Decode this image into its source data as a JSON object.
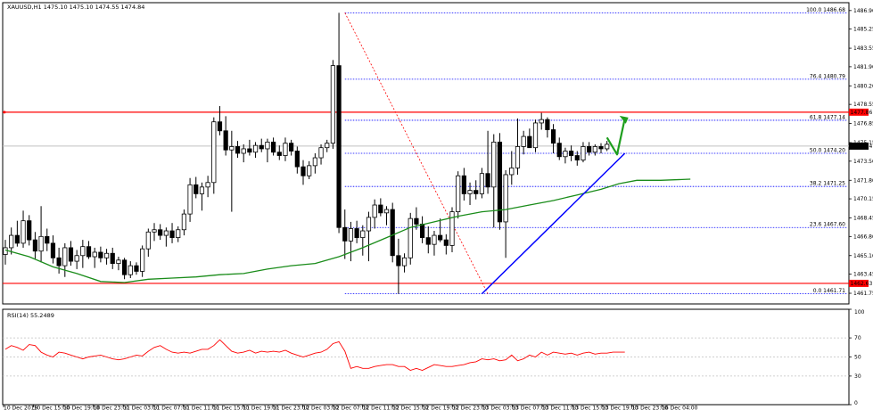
{
  "chart_data": {
    "type": "candlestick",
    "title": "XAUUSD,H1  1475.10 1475.10 1474.55 1474.84",
    "colors": {
      "frame": "#000000",
      "candle": "#000000",
      "ma": "#1a8c1a",
      "rsi": "#ff0000",
      "resistance": "#ff0000",
      "trendline": "#0000ff",
      "fib": "#0000ff",
      "fib_diag": "#ff0000",
      "arrow": "#1e9e1e",
      "price_tag": "#000000",
      "level_tag": "#ff0000"
    },
    "price_axis": {
      "ylim": [
        1460.8,
        1487.6
      ],
      "ticks": [
        "1486.90",
        "1485.25",
        "1483.55",
        "1481.90",
        "1480.20",
        "1478.55",
        "1476.85",
        "1475.15",
        "1473.50",
        "1471.80",
        "1470.15",
        "1468.45",
        "1466.80",
        "1465.10",
        "1463.45",
        "1461.75"
      ]
    },
    "time_axis": {
      "labels": [
        "10 Dec 2019",
        "10 Dec 15:00",
        "10 Dec 19:00",
        "10 Dec 23:00",
        "11 Dec 03:00",
        "11 Dec 07:00",
        "11 Dec 11:00",
        "11 Dec 15:00",
        "11 Dec 19:00",
        "11 Dec 23:00",
        "12 Dec 03:00",
        "12 Dec 07:00",
        "12 Dec 11:00",
        "12 Dec 15:00",
        "12 Dec 19:00",
        "12 Dec 23:00",
        "13 Dec 03:00",
        "13 Dec 07:00",
        "13 Dec 11:00",
        "13 Dec 15:00",
        "13 Dec 19:00",
        "13 Dec 23:00",
        "16 Dec 04:00"
      ]
    },
    "current_price": "1474.84",
    "levels": [
      {
        "name": "resistance",
        "value": 1477.86,
        "label": "1477.86"
      },
      {
        "name": "support",
        "value": 1462.63,
        "label": "1462.63"
      }
    ],
    "fibonacci": [
      {
        "label": "100.0 1486.68",
        "value": 1486.68
      },
      {
        "label": "76.4 1480.79",
        "value": 1480.79
      },
      {
        "label": "61.8 1477.14",
        "value": 1477.14
      },
      {
        "label": "50.0 1474.20",
        "value": 1474.2
      },
      {
        "label": "38.2 1471.25",
        "value": 1471.25
      },
      {
        "label": "23.6 1467.60",
        "value": 1467.6
      },
      {
        "label": "0.0 1461.71",
        "value": 1461.71
      }
    ],
    "candles": [
      {
        "o": 1465.2,
        "h": 1466.5,
        "l": 1464.3,
        "c": 1465.8
      },
      {
        "o": 1465.8,
        "h": 1467.6,
        "l": 1465.2,
        "c": 1466.9
      },
      {
        "o": 1466.9,
        "h": 1468.2,
        "l": 1465.9,
        "c": 1466.2
      },
      {
        "o": 1466.2,
        "h": 1469.1,
        "l": 1465.8,
        "c": 1468.2
      },
      {
        "o": 1468.2,
        "h": 1468.7,
        "l": 1466.0,
        "c": 1466.5
      },
      {
        "o": 1466.5,
        "h": 1467.2,
        "l": 1464.8,
        "c": 1465.5
      },
      {
        "o": 1465.5,
        "h": 1469.5,
        "l": 1464.5,
        "c": 1466.8
      },
      {
        "o": 1466.8,
        "h": 1467.5,
        "l": 1465.5,
        "c": 1466.2
      },
      {
        "o": 1466.2,
        "h": 1466.9,
        "l": 1464.4,
        "c": 1464.9
      },
      {
        "o": 1464.9,
        "h": 1465.8,
        "l": 1463.5,
        "c": 1464.2
      },
      {
        "o": 1464.2,
        "h": 1466.2,
        "l": 1463.2,
        "c": 1465.8
      },
      {
        "o": 1465.8,
        "h": 1466.4,
        "l": 1464.2,
        "c": 1464.6
      },
      {
        "o": 1464.6,
        "h": 1465.6,
        "l": 1463.9,
        "c": 1465.1
      },
      {
        "o": 1465.1,
        "h": 1466.5,
        "l": 1464.0,
        "c": 1465.9
      },
      {
        "o": 1465.9,
        "h": 1466.4,
        "l": 1464.8,
        "c": 1465.0
      },
      {
        "o": 1465.0,
        "h": 1465.8,
        "l": 1464.0,
        "c": 1465.4
      },
      {
        "o": 1465.4,
        "h": 1465.9,
        "l": 1464.5,
        "c": 1464.9
      },
      {
        "o": 1464.9,
        "h": 1465.7,
        "l": 1464.3,
        "c": 1465.3
      },
      {
        "o": 1465.3,
        "h": 1465.8,
        "l": 1463.9,
        "c": 1464.4
      },
      {
        "o": 1464.4,
        "h": 1465.0,
        "l": 1463.8,
        "c": 1464.7
      },
      {
        "o": 1464.7,
        "h": 1464.9,
        "l": 1463.0,
        "c": 1463.4
      },
      {
        "o": 1463.4,
        "h": 1464.6,
        "l": 1463.1,
        "c": 1464.2
      },
      {
        "o": 1464.2,
        "h": 1464.5,
        "l": 1463.4,
        "c": 1463.7
      },
      {
        "o": 1463.7,
        "h": 1466.0,
        "l": 1463.2,
        "c": 1465.7
      },
      {
        "o": 1465.7,
        "h": 1467.5,
        "l": 1465.0,
        "c": 1467.2
      },
      {
        "o": 1467.2,
        "h": 1468.0,
        "l": 1466.4,
        "c": 1467.4
      },
      {
        "o": 1467.4,
        "h": 1467.9,
        "l": 1466.5,
        "c": 1466.9
      },
      {
        "o": 1466.9,
        "h": 1467.6,
        "l": 1465.9,
        "c": 1467.3
      },
      {
        "o": 1467.3,
        "h": 1468.0,
        "l": 1466.2,
        "c": 1466.7
      },
      {
        "o": 1466.7,
        "h": 1467.7,
        "l": 1466.3,
        "c": 1467.4
      },
      {
        "o": 1467.4,
        "h": 1469.2,
        "l": 1466.9,
        "c": 1468.8
      },
      {
        "o": 1468.8,
        "h": 1472.0,
        "l": 1468.1,
        "c": 1471.4
      },
      {
        "o": 1471.4,
        "h": 1472.1,
        "l": 1470.2,
        "c": 1470.6
      },
      {
        "o": 1470.6,
        "h": 1471.6,
        "l": 1469.1,
        "c": 1471.2
      },
      {
        "o": 1471.2,
        "h": 1472.2,
        "l": 1470.3,
        "c": 1471.6
      },
      {
        "o": 1471.6,
        "h": 1477.4,
        "l": 1470.6,
        "c": 1477.0
      },
      {
        "o": 1477.0,
        "h": 1478.4,
        "l": 1475.8,
        "c": 1476.2
      },
      {
        "o": 1476.2,
        "h": 1477.5,
        "l": 1474.0,
        "c": 1474.5
      },
      {
        "o": 1474.5,
        "h": 1476.2,
        "l": 1469.0,
        "c": 1474.8
      },
      {
        "o": 1474.8,
        "h": 1475.3,
        "l": 1473.8,
        "c": 1474.2
      },
      {
        "o": 1474.2,
        "h": 1475.0,
        "l": 1473.4,
        "c": 1474.6
      },
      {
        "o": 1474.6,
        "h": 1475.4,
        "l": 1474.0,
        "c": 1474.3
      },
      {
        "o": 1474.3,
        "h": 1475.2,
        "l": 1473.8,
        "c": 1474.9
      },
      {
        "o": 1474.9,
        "h": 1475.5,
        "l": 1474.3,
        "c": 1474.6
      },
      {
        "o": 1474.6,
        "h": 1475.5,
        "l": 1473.4,
        "c": 1475.2
      },
      {
        "o": 1475.2,
        "h": 1475.6,
        "l": 1474.0,
        "c": 1474.3
      },
      {
        "o": 1474.3,
        "h": 1474.9,
        "l": 1473.6,
        "c": 1474.0
      },
      {
        "o": 1474.0,
        "h": 1475.6,
        "l": 1473.5,
        "c": 1475.1
      },
      {
        "o": 1475.1,
        "h": 1475.4,
        "l": 1474.0,
        "c": 1474.4
      },
      {
        "o": 1474.4,
        "h": 1474.8,
        "l": 1472.4,
        "c": 1473.0
      },
      {
        "o": 1473.0,
        "h": 1473.6,
        "l": 1471.4,
        "c": 1472.2
      },
      {
        "o": 1472.2,
        "h": 1473.5,
        "l": 1471.9,
        "c": 1473.1
      },
      {
        "o": 1473.1,
        "h": 1474.2,
        "l": 1472.4,
        "c": 1473.8
      },
      {
        "o": 1473.8,
        "h": 1475.0,
        "l": 1473.2,
        "c": 1474.7
      },
      {
        "o": 1474.7,
        "h": 1475.4,
        "l": 1474.3,
        "c": 1475.1
      },
      {
        "o": 1475.1,
        "h": 1482.5,
        "l": 1474.6,
        "c": 1482.0
      },
      {
        "o": 1482.0,
        "h": 1486.7,
        "l": 1467.1,
        "c": 1467.6
      },
      {
        "o": 1467.6,
        "h": 1469.2,
        "l": 1464.8,
        "c": 1466.4
      },
      {
        "o": 1466.4,
        "h": 1468.1,
        "l": 1464.6,
        "c": 1467.5
      },
      {
        "o": 1467.5,
        "h": 1468.2,
        "l": 1466.2,
        "c": 1466.7
      },
      {
        "o": 1466.7,
        "h": 1467.8,
        "l": 1465.1,
        "c": 1467.3
      },
      {
        "o": 1467.3,
        "h": 1469.0,
        "l": 1464.6,
        "c": 1468.5
      },
      {
        "o": 1468.5,
        "h": 1470.1,
        "l": 1467.5,
        "c": 1469.6
      },
      {
        "o": 1469.6,
        "h": 1470.2,
        "l": 1468.6,
        "c": 1468.9
      },
      {
        "o": 1468.9,
        "h": 1469.5,
        "l": 1467.8,
        "c": 1469.2
      },
      {
        "o": 1469.2,
        "h": 1469.8,
        "l": 1464.5,
        "c": 1465.1
      },
      {
        "o": 1465.1,
        "h": 1466.6,
        "l": 1461.7,
        "c": 1464.2
      },
      {
        "o": 1464.2,
        "h": 1465.3,
        "l": 1463.6,
        "c": 1464.9
      },
      {
        "o": 1464.9,
        "h": 1468.9,
        "l": 1464.3,
        "c": 1468.4
      },
      {
        "o": 1468.4,
        "h": 1469.4,
        "l": 1467.4,
        "c": 1467.9
      },
      {
        "o": 1467.9,
        "h": 1468.6,
        "l": 1466.2,
        "c": 1466.7
      },
      {
        "o": 1466.7,
        "h": 1467.7,
        "l": 1465.3,
        "c": 1466.1
      },
      {
        "o": 1466.1,
        "h": 1467.3,
        "l": 1465.1,
        "c": 1466.9
      },
      {
        "o": 1466.9,
        "h": 1468.4,
        "l": 1466.3,
        "c": 1466.5
      },
      {
        "o": 1466.5,
        "h": 1467.0,
        "l": 1465.2,
        "c": 1466.0
      },
      {
        "o": 1466.0,
        "h": 1469.4,
        "l": 1465.4,
        "c": 1469.0
      },
      {
        "o": 1469.0,
        "h": 1472.6,
        "l": 1468.4,
        "c": 1472.2
      },
      {
        "o": 1472.2,
        "h": 1472.9,
        "l": 1470.0,
        "c": 1470.6
      },
      {
        "o": 1470.6,
        "h": 1471.6,
        "l": 1469.6,
        "c": 1470.9
      },
      {
        "o": 1470.9,
        "h": 1471.8,
        "l": 1470.1,
        "c": 1470.6
      },
      {
        "o": 1470.6,
        "h": 1472.9,
        "l": 1470.2,
        "c": 1472.4
      },
      {
        "o": 1472.4,
        "h": 1476.2,
        "l": 1470.6,
        "c": 1471.2
      },
      {
        "o": 1471.2,
        "h": 1475.9,
        "l": 1467.6,
        "c": 1475.2
      },
      {
        "o": 1475.2,
        "h": 1476.0,
        "l": 1467.4,
        "c": 1468.1
      },
      {
        "o": 1468.1,
        "h": 1472.7,
        "l": 1464.9,
        "c": 1472.3
      },
      {
        "o": 1472.3,
        "h": 1474.4,
        "l": 1471.4,
        "c": 1472.9
      },
      {
        "o": 1472.9,
        "h": 1477.3,
        "l": 1472.3,
        "c": 1474.8
      },
      {
        "o": 1474.8,
        "h": 1476.2,
        "l": 1474.1,
        "c": 1475.7
      },
      {
        "o": 1475.7,
        "h": 1476.4,
        "l": 1474.9,
        "c": 1474.7
      },
      {
        "o": 1474.7,
        "h": 1477.2,
        "l": 1474.3,
        "c": 1476.9
      },
      {
        "o": 1476.9,
        "h": 1477.8,
        "l": 1476.3,
        "c": 1477.2
      },
      {
        "o": 1477.2,
        "h": 1477.4,
        "l": 1475.6,
        "c": 1476.3
      },
      {
        "o": 1476.3,
        "h": 1476.8,
        "l": 1474.2,
        "c": 1475.1
      },
      {
        "o": 1475.1,
        "h": 1475.6,
        "l": 1473.6,
        "c": 1473.9
      },
      {
        "o": 1473.9,
        "h": 1474.7,
        "l": 1473.3,
        "c": 1474.4
      },
      {
        "o": 1474.4,
        "h": 1474.9,
        "l": 1473.5,
        "c": 1474.0
      },
      {
        "o": 1474.0,
        "h": 1474.4,
        "l": 1473.1,
        "c": 1473.6
      },
      {
        "o": 1473.6,
        "h": 1475.2,
        "l": 1473.4,
        "c": 1474.8
      },
      {
        "o": 1474.8,
        "h": 1475.2,
        "l": 1474.0,
        "c": 1474.3
      },
      {
        "o": 1474.3,
        "h": 1475.0,
        "l": 1474.0,
        "c": 1474.8
      },
      {
        "o": 1474.8,
        "h": 1475.1,
        "l": 1474.2,
        "c": 1474.6
      },
      {
        "o": 1474.6,
        "h": 1475.3,
        "l": 1474.4,
        "c": 1475.0
      }
    ],
    "moving_average": [
      [
        0,
        1465.6
      ],
      [
        4,
        1465.0
      ],
      [
        8,
        1464.1
      ],
      [
        12,
        1463.5
      ],
      [
        16,
        1462.8
      ],
      [
        20,
        1462.7
      ],
      [
        24,
        1463.0
      ],
      [
        28,
        1463.1
      ],
      [
        32,
        1463.2
      ],
      [
        36,
        1463.4
      ],
      [
        40,
        1463.5
      ],
      [
        44,
        1463.9
      ],
      [
        48,
        1464.2
      ],
      [
        52,
        1464.4
      ],
      [
        56,
        1465.0
      ],
      [
        60,
        1465.8
      ],
      [
        64,
        1466.7
      ],
      [
        68,
        1467.6
      ],
      [
        72,
        1468.1
      ],
      [
        76,
        1468.6
      ],
      [
        80,
        1469.0
      ],
      [
        84,
        1469.2
      ],
      [
        88,
        1469.6
      ],
      [
        92,
        1470.0
      ],
      [
        96,
        1470.5
      ],
      [
        100,
        1471.0
      ],
      [
        103,
        1471.5
      ],
      [
        106,
        1471.8
      ],
      [
        110,
        1471.8
      ],
      [
        115,
        1471.9
      ]
    ],
    "rsi": {
      "label": "RSI(14) 55.2489",
      "ylim": [
        0,
        100
      ],
      "ticks": [
        "100",
        "70",
        "50",
        "30",
        "0"
      ],
      "values": [
        58,
        62,
        60,
        57,
        63,
        62,
        55,
        52,
        50,
        55,
        54,
        52,
        50,
        48,
        50,
        51,
        52,
        50,
        48,
        47,
        48,
        50,
        52,
        51,
        56,
        60,
        62,
        58,
        55,
        54,
        55,
        54,
        56,
        58,
        58,
        62,
        68,
        62,
        56,
        54,
        55,
        57,
        54,
        56,
        55,
        56,
        55,
        57,
        54,
        52,
        50,
        52,
        54,
        55,
        58,
        64,
        66,
        56,
        38,
        40,
        38,
        38,
        40,
        41,
        42,
        42,
        40,
        40,
        36,
        38,
        36,
        39,
        42,
        41,
        40,
        40,
        41,
        42,
        44,
        45,
        48,
        47,
        48,
        46,
        47,
        52,
        46,
        48,
        52,
        50,
        55,
        52,
        55,
        54,
        53,
        54,
        52,
        54,
        55,
        53,
        54,
        54,
        55,
        55,
        55
      ]
    },
    "trendline": {
      "from": [
        80,
        1461.7
      ],
      "to": [
        104,
        1474.2
      ]
    },
    "fib_swing": {
      "from": [
        57,
        1486.7
      ],
      "to": [
        81,
        1461.7
      ]
    },
    "arrow": {
      "points": [
        [
          101,
          1475.6
        ],
        [
          102.7,
          1474.1
        ],
        [
          104,
          1477.3
        ]
      ]
    }
  }
}
